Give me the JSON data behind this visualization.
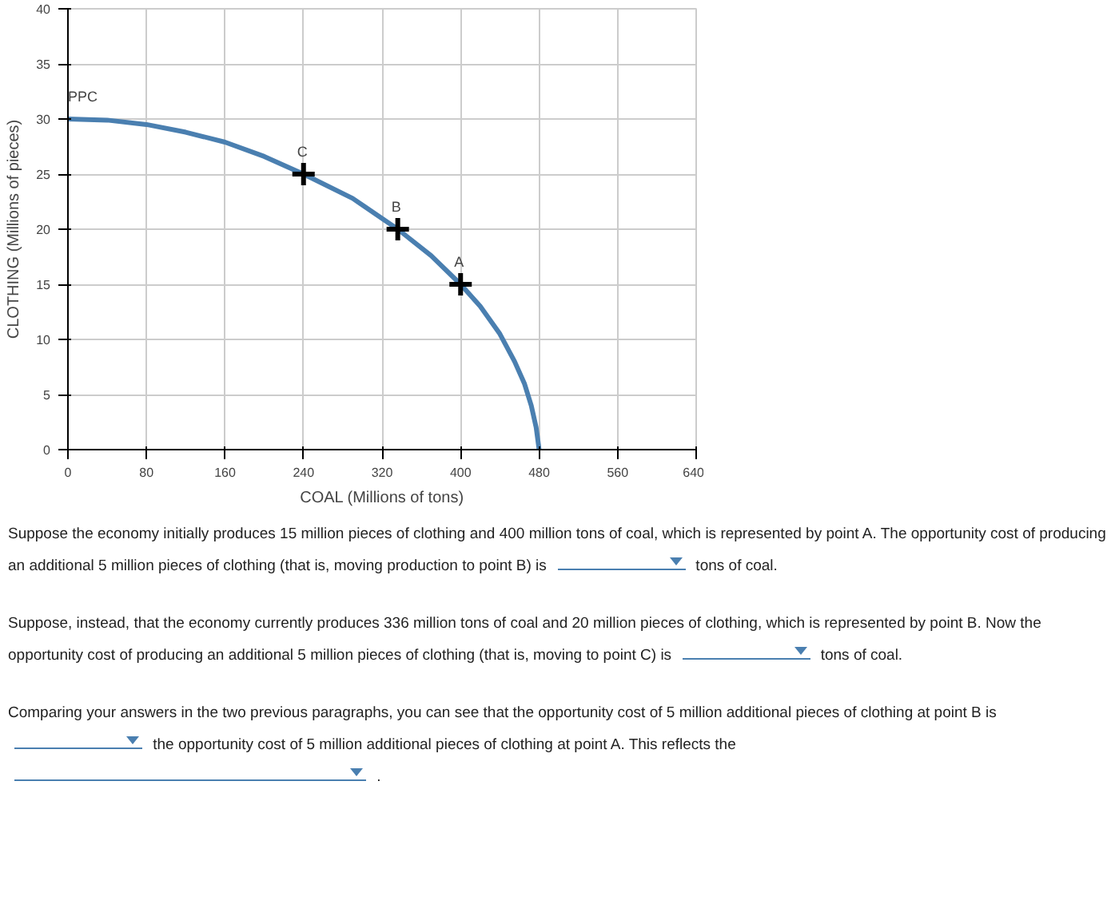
{
  "chart_data": {
    "type": "line",
    "xlabel": "COAL (Millions of tons)",
    "ylabel": "CLOTHING (Millions of pieces)",
    "xlim": [
      0,
      640
    ],
    "ylim": [
      0,
      40
    ],
    "xticks": [
      0,
      80,
      160,
      240,
      320,
      400,
      480,
      560,
      640
    ],
    "yticks": [
      0,
      5,
      10,
      15,
      20,
      25,
      30,
      35,
      40
    ],
    "grid": true,
    "series": [
      {
        "color": "#4a7fb0",
        "marker": "none",
        "x": [
          0,
          40,
          80,
          120,
          160,
          200,
          240,
          290,
          336,
          370,
          400,
          420,
          440,
          455,
          465,
          472,
          477,
          480
        ],
        "values": [
          30,
          29.9,
          29.5,
          28.8,
          27.9,
          26.6,
          25,
          22.8,
          20,
          17.6,
          15,
          13,
          10.5,
          8,
          6,
          4,
          2,
          0
        ]
      },
      {
        "type": "scatter",
        "color": "#000000",
        "marker": "cross",
        "x": [
          240,
          336,
          400
        ],
        "values": [
          25,
          20,
          15
        ]
      }
    ],
    "annotations": [
      {
        "text": "PPC",
        "x": 0,
        "y": 30
      },
      {
        "text": "C",
        "x": 240,
        "y": 25
      },
      {
        "text": "B",
        "x": 336,
        "y": 20
      },
      {
        "text": "A",
        "x": 400,
        "y": 15
      },
      "Suppose the economy initially produces 15 million pieces of clothing and 400 million tons of coal, which is represented by point A. The opportunity cost of producing an additional 5 million pieces of clothing (that is, moving production to point B) is",
      "tons of coal.",
      "Suppose, instead, that the economy currently produces 336 million tons of coal and 20 million pieces of clothing, which is represented by point B. Now the opportunity cost of producing an additional 5 million pieces of clothing (that is, moving to point C) is",
      "tons of coal.",
      "Comparing your answers in the two previous paragraphs, you can see that the opportunity cost of 5 million additional pieces of clothing at point B is",
      "the opportunity cost of 5 million additional pieces of clothing at point A. This reflects the",
      "."
    ]
  }
}
